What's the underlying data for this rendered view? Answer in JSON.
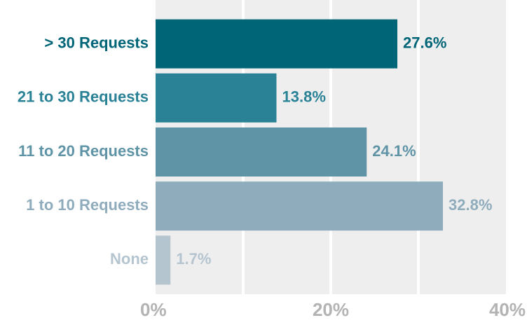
{
  "chart_data": {
    "type": "barh",
    "categories": [
      "> 30 Requests",
      "21 to 30 Requests",
      "11 to 20 Requests",
      "1 to 10 Requests",
      "None"
    ],
    "values": [
      27.6,
      13.8,
      24.1,
      32.8,
      1.7
    ],
    "value_labels": [
      "27.6%",
      "13.8%",
      "24.1%",
      "32.8%",
      "1.7%"
    ],
    "colors": [
      "#006577",
      "#2a8296",
      "#5f93a6",
      "#8facbd",
      "#b4c5d0"
    ],
    "xlim": [
      0,
      40
    ],
    "xticks": [
      {
        "value": 0,
        "label": "0%"
      },
      {
        "value": 20,
        "label": "20%"
      },
      {
        "value": 40,
        "label": "40%"
      }
    ],
    "xgrid": [
      10,
      20,
      30
    ]
  }
}
